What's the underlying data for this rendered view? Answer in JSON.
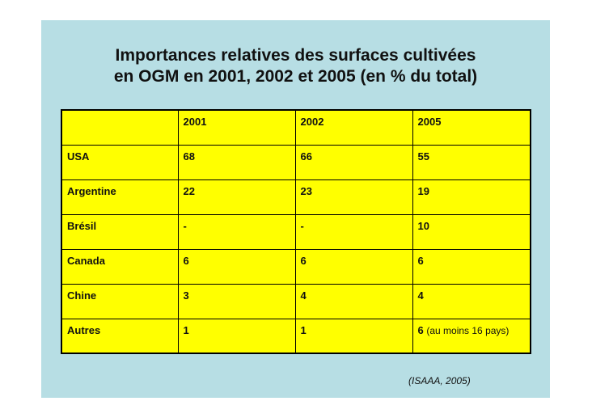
{
  "title": {
    "line1": "Importances relatives des surfaces cultivées",
    "line2": "en OGM en 2001, 2002 et 2005 (en % du total)"
  },
  "table": {
    "header": [
      "",
      "2001",
      "2002",
      "2005"
    ],
    "rows": [
      {
        "country": "USA",
        "y2001": "68",
        "y2002": "66",
        "y2005": "55",
        "note": ""
      },
      {
        "country": "Argentine",
        "y2001": "22",
        "y2002": "23",
        "y2005": "19",
        "note": ""
      },
      {
        "country": "Brésil",
        "y2001": "-",
        "y2002": "-",
        "y2005": "10",
        "note": ""
      },
      {
        "country": "Canada",
        "y2001": "6",
        "y2002": "6",
        "y2005": "6",
        "note": ""
      },
      {
        "country": "Chine",
        "y2001": "3",
        "y2002": "4",
        "y2005": "4",
        "note": ""
      },
      {
        "country": "Autres",
        "y2001": "1",
        "y2002": "1",
        "y2005": "6",
        "note": "(au moins 16 pays)"
      }
    ]
  },
  "source": "(ISAAA, 2005)",
  "colors": {
    "background": "#b7dee4",
    "table_fill": "#ffff00"
  }
}
